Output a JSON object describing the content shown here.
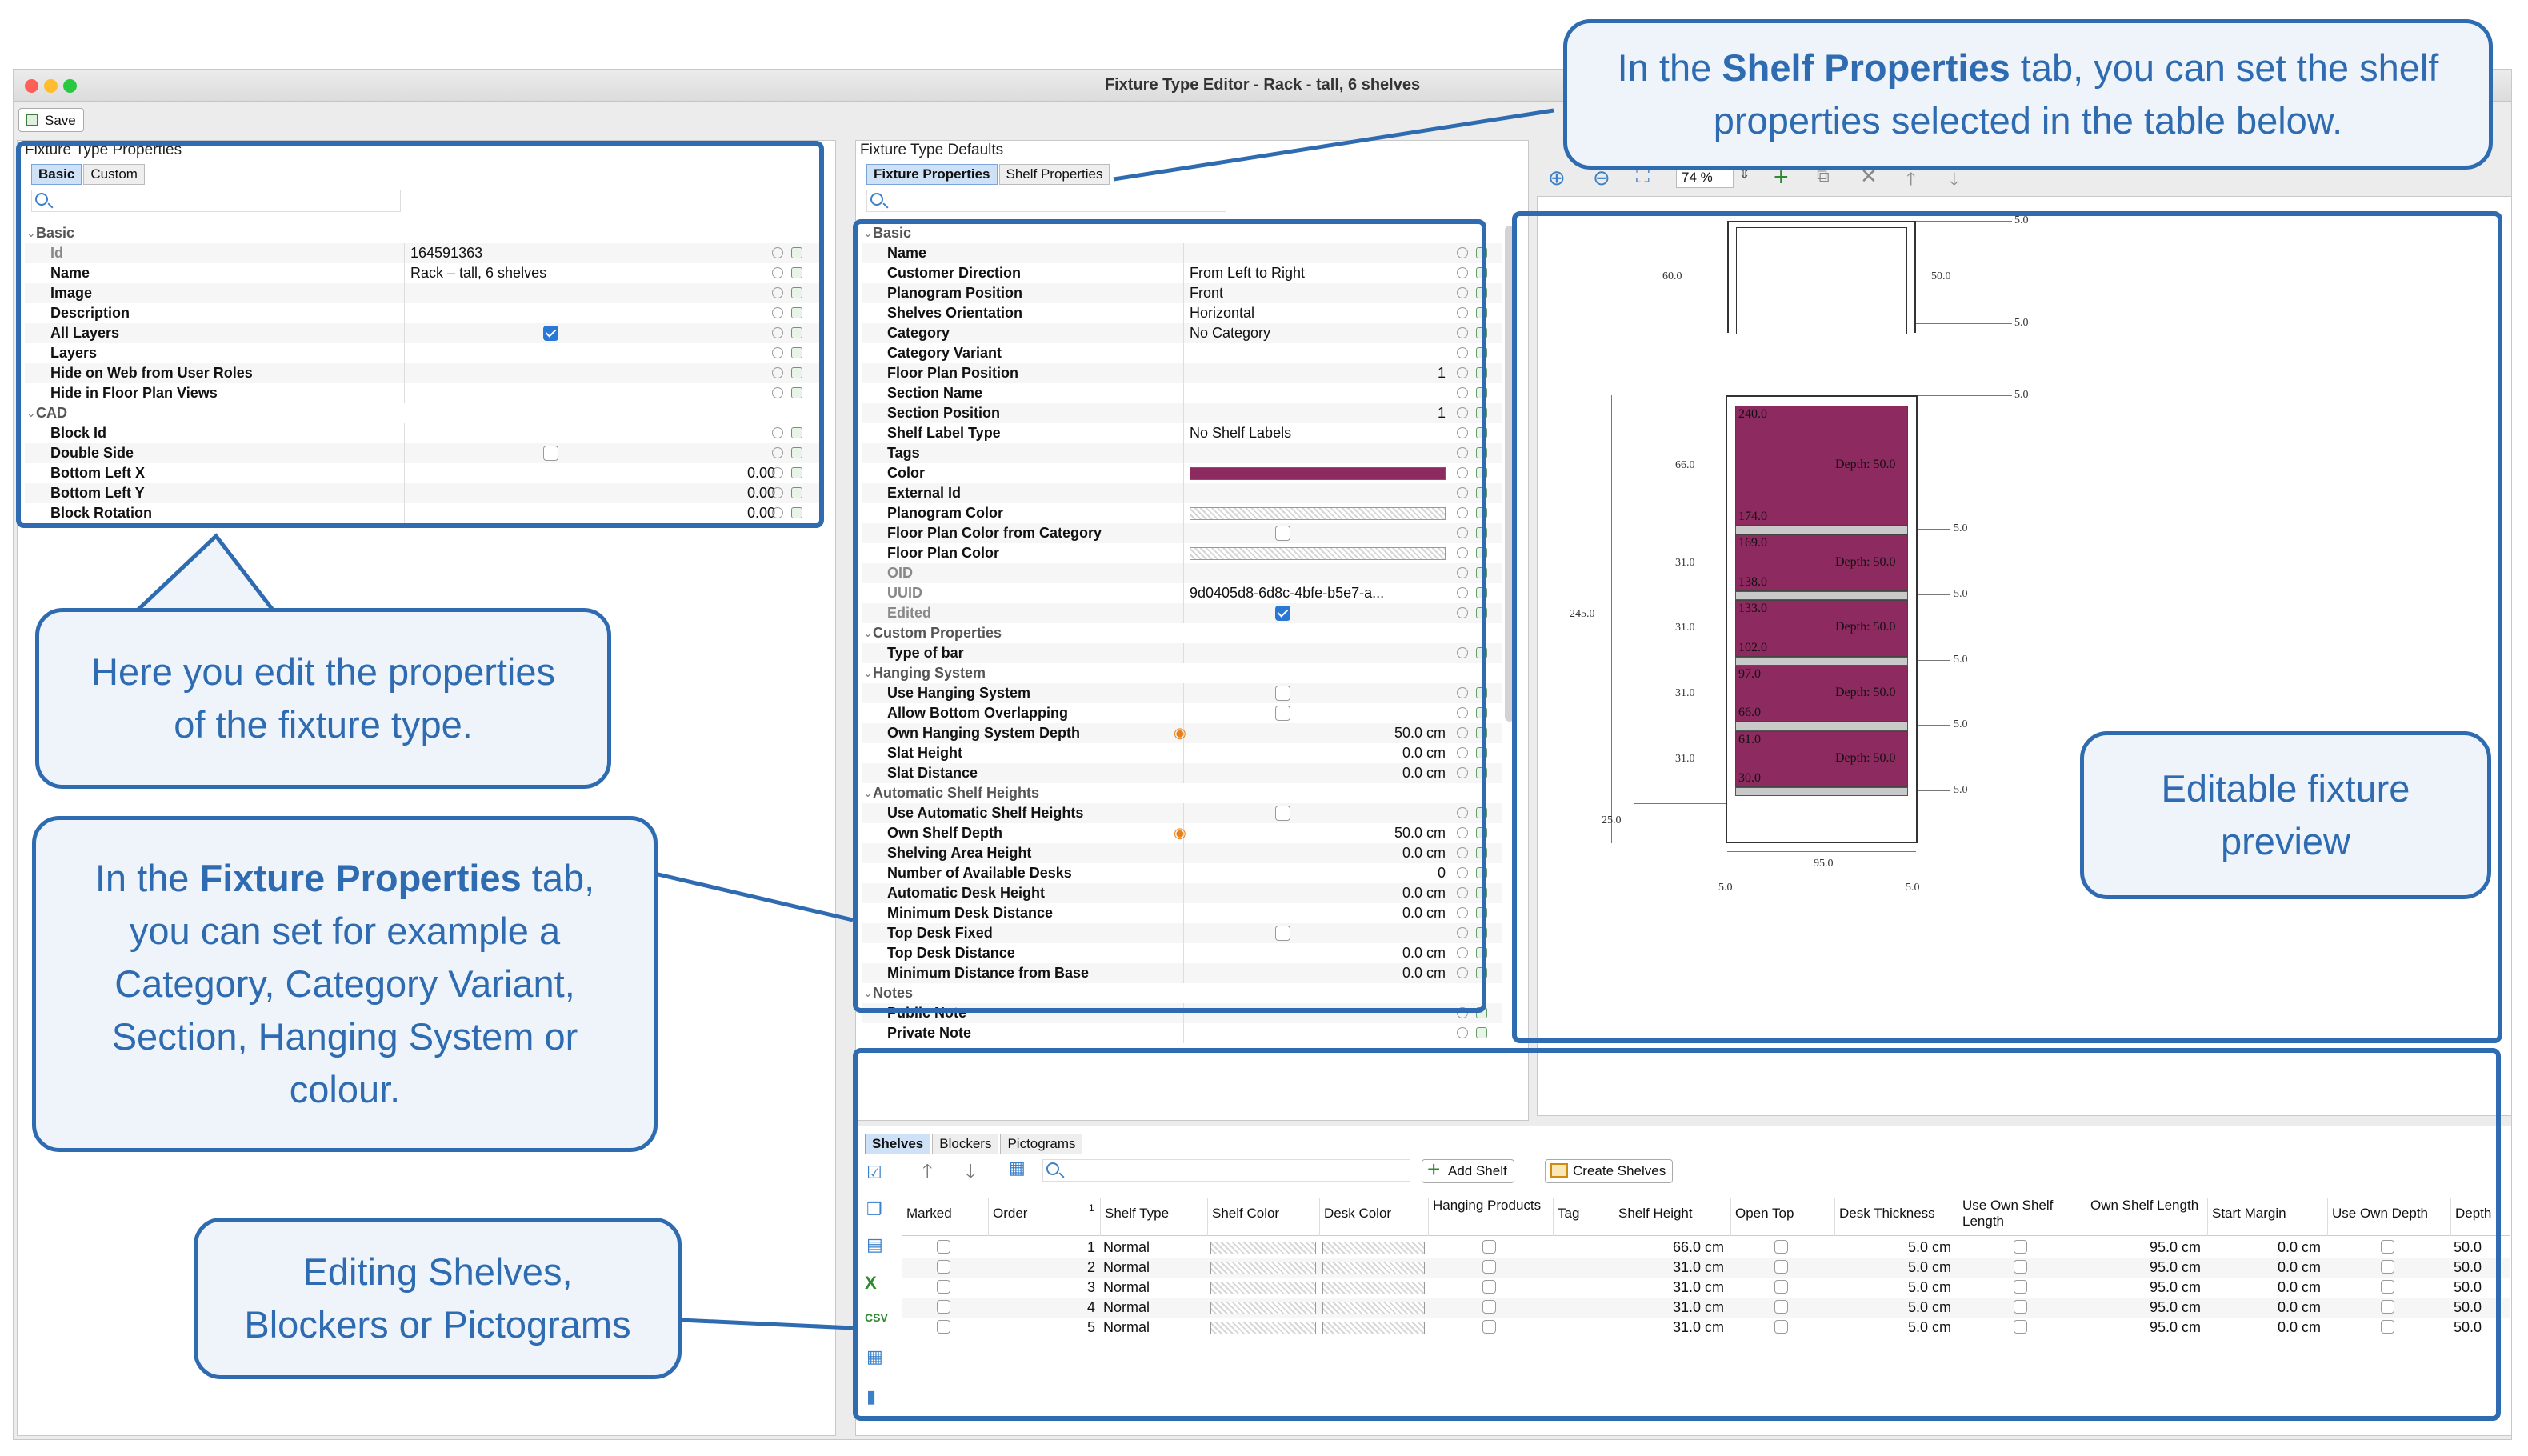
{
  "window": {
    "title": "Fixture Type Editor - Rack - tall, 6 shelves",
    "save_label": "Save"
  },
  "left_panel": {
    "group_title": "Fixture Type Properties",
    "tabs": [
      "Basic",
      "Custom"
    ],
    "rows": [
      {
        "type": "section",
        "label": "Basic"
      },
      {
        "label": "Id",
        "value": "164591363",
        "gray": true
      },
      {
        "label": "Name",
        "value": "Rack – tall, 6 shelves"
      },
      {
        "label": "Image",
        "value": ""
      },
      {
        "label": "Description",
        "value": ""
      },
      {
        "label": "All Layers",
        "check": true
      },
      {
        "label": "Layers",
        "value": ""
      },
      {
        "label": "Hide on Web from User Roles",
        "value": ""
      },
      {
        "label": "Hide in Floor Plan Views",
        "value": ""
      },
      {
        "type": "section",
        "label": "CAD"
      },
      {
        "label": "Block Id",
        "value": ""
      },
      {
        "label": "Double Side",
        "check": false
      },
      {
        "label": "Bottom Left X",
        "num": "0.00"
      },
      {
        "label": "Bottom Left Y",
        "num": "0.00"
      },
      {
        "label": "Block Rotation",
        "num": "0.00"
      }
    ]
  },
  "middle_panel": {
    "group_title": "Fixture Type Defaults",
    "tabs": [
      "Fixture Properties",
      "Shelf Properties"
    ],
    "rows": [
      {
        "type": "section",
        "label": "Basic"
      },
      {
        "label": "Name",
        "value": ""
      },
      {
        "label": "Customer Direction",
        "value": "From Left to Right"
      },
      {
        "label": "Planogram Position",
        "value": "Front"
      },
      {
        "label": "Shelves Orientation",
        "value": "Horizontal"
      },
      {
        "label": "Category",
        "value": "No Category"
      },
      {
        "label": "Category Variant",
        "value": ""
      },
      {
        "label": "Floor Plan Position",
        "num": "1"
      },
      {
        "label": "Section Name",
        "value": ""
      },
      {
        "label": "Section Position",
        "num": "1"
      },
      {
        "label": "Shelf Label Type",
        "value": "No Shelf Labels"
      },
      {
        "label": "Tags",
        "value": ""
      },
      {
        "label": "Color",
        "color": "#8d2a5f"
      },
      {
        "label": "External Id",
        "value": ""
      },
      {
        "label": "Planogram Color",
        "hatch": true
      },
      {
        "label": "Floor Plan Color from Category",
        "check": false
      },
      {
        "label": "Floor Plan Color",
        "hatch": true
      },
      {
        "label": "OID",
        "value": "",
        "gray": true
      },
      {
        "label": "UUID",
        "value": "9d0405d8-6d8c-4bfe-b5e7-a...",
        "gray": true
      },
      {
        "label": "Edited",
        "check": true,
        "gray": true
      },
      {
        "type": "section",
        "label": "Custom Properties"
      },
      {
        "label": "Type of bar",
        "value": ""
      },
      {
        "type": "section",
        "label": "Hanging System"
      },
      {
        "label": "Use Hanging System",
        "check": false
      },
      {
        "label": "Allow Bottom Overlapping",
        "check": false
      },
      {
        "label": "Own Hanging System Depth",
        "num": "50.0 cm",
        "warn": true
      },
      {
        "label": "Slat Height",
        "num": "0.0 cm"
      },
      {
        "label": "Slat Distance",
        "num": "0.0 cm"
      },
      {
        "type": "section",
        "label": "Automatic Shelf Heights"
      },
      {
        "label": "Use Automatic Shelf Heights",
        "check": false
      },
      {
        "label": "Own Shelf Depth",
        "num": "50.0 cm",
        "warn": true
      },
      {
        "label": "Shelving Area Height",
        "num": "0.0 cm"
      },
      {
        "label": "Number of Available Desks",
        "num": "0"
      },
      {
        "label": "Automatic Desk Height",
        "num": "0.0 cm"
      },
      {
        "label": "Minimum Desk Distance",
        "num": "0.0 cm"
      },
      {
        "label": "Top Desk Fixed",
        "check": false
      },
      {
        "label": "Top Desk Distance",
        "num": "0.0 cm"
      },
      {
        "label": "Minimum Distance from Base",
        "num": "0.0 cm"
      },
      {
        "type": "section",
        "label": "Notes"
      },
      {
        "label": "Public Note",
        "value": ""
      },
      {
        "label": "Private Note",
        "value": ""
      }
    ]
  },
  "preview_toolbar": {
    "zoom": "74 %"
  },
  "preview": {
    "top_dims": {
      "left": "60.0",
      "right": "50.0",
      "top": "5.0",
      "bottom": "5.0"
    },
    "total_height": "245.0",
    "base": "25.0",
    "width": "95.0",
    "bottom_left": "5.0",
    "bottom_right": "5.0",
    "top_right": "5.0",
    "shelves": [
      {
        "top": "240.0",
        "bottom": "174.0",
        "height": "66.0",
        "depth": "Depth: 50.0",
        "gap": "5.0"
      },
      {
        "top": "169.0",
        "bottom": "138.0",
        "height": "31.0",
        "depth": "Depth: 50.0",
        "gap": "5.0"
      },
      {
        "top": "133.0",
        "bottom": "102.0",
        "height": "31.0",
        "depth": "Depth: 50.0",
        "gap": "5.0"
      },
      {
        "top": "97.0",
        "bottom": "66.0",
        "height": "31.0",
        "depth": "Depth: 50.0",
        "gap": "5.0"
      },
      {
        "top": "61.0",
        "bottom": "30.0",
        "height": "31.0",
        "depth": "Depth: 50.0",
        "gap": "5.0"
      }
    ]
  },
  "bottom": {
    "tabs": [
      "Shelves",
      "Blockers",
      "Pictograms"
    ],
    "add_shelf": "Add Shelf",
    "create_shelves": "Create Shelves",
    "columns": [
      "Marked",
      "Order",
      "Shelf Type",
      "Shelf Color",
      "Desk Color",
      "Hanging Products",
      "Tag",
      "Shelf Height",
      "Open Top",
      "Desk Thickness",
      "Use Own Shelf Length",
      "Own Shelf Length",
      "Start Margin",
      "Use Own Depth",
      "Depth"
    ],
    "sort_indicator": "1",
    "rows": [
      {
        "order": "1",
        "type": "Normal",
        "height": "66.0 cm",
        "thickness": "5.0 cm",
        "length": "95.0 cm",
        "margin": "0.0 cm",
        "depth": "50.0"
      },
      {
        "order": "2",
        "type": "Normal",
        "height": "31.0 cm",
        "thickness": "5.0 cm",
        "length": "95.0 cm",
        "margin": "0.0 cm",
        "depth": "50.0"
      },
      {
        "order": "3",
        "type": "Normal",
        "height": "31.0 cm",
        "thickness": "5.0 cm",
        "length": "95.0 cm",
        "margin": "0.0 cm",
        "depth": "50.0"
      },
      {
        "order": "4",
        "type": "Normal",
        "height": "31.0 cm",
        "thickness": "5.0 cm",
        "length": "95.0 cm",
        "margin": "0.0 cm",
        "depth": "50.0"
      },
      {
        "order": "5",
        "type": "Normal",
        "height": "31.0 cm",
        "thickness": "5.0 cm",
        "length": "95.0 cm",
        "margin": "0.0 cm",
        "depth": "50.0"
      }
    ]
  },
  "callouts": {
    "shelf_props_pre": "In the ",
    "shelf_props_bold": "Shelf Properties",
    "shelf_props_post": " tab, you can set the shelf properties selected in the table below.",
    "edit_props": "Here you edit the properties of the fixture type.",
    "fixture_props_pre": "In the ",
    "fixture_props_bold": "Fixture Properties",
    "fixture_props_post": " tab, you can set for example a Category, Category Variant, Section, Hanging System or colour.",
    "preview": "Editable fixture preview",
    "shelves": "Editing Shelves, Blockers or Pictograms"
  },
  "colors": {
    "accent": "#2e6bb0",
    "shelf": "#8d2a5f"
  }
}
